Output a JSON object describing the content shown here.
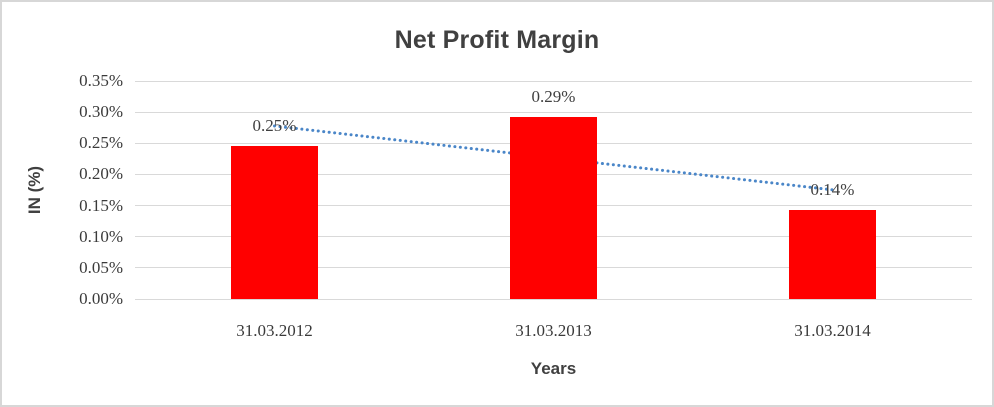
{
  "chart_data": {
    "type": "bar",
    "title": "Net Profit Margin",
    "xlabel": "Years",
    "ylabel": "IN (%)",
    "categories": [
      "31.03.2012",
      "31.03.2013",
      "31.03.2014"
    ],
    "values": [
      0.245,
      0.292,
      0.1425
    ],
    "data_labels": [
      "0.25%",
      "0.29%",
      "0.14%"
    ],
    "unit": "%",
    "ylim": [
      0,
      0.35
    ],
    "ytick_step": 0.05,
    "ytick_labels": [
      "0.00%",
      "0.05%",
      "0.10%",
      "0.15%",
      "0.20%",
      "0.25%",
      "0.30%",
      "0.35%"
    ],
    "grid": true,
    "legend": "none",
    "trendline": {
      "type": "linear",
      "style": "dotted",
      "series": "values"
    },
    "colors": {
      "bar": "#ff0000",
      "trendline": "#4a86c8",
      "gridline": "#d9d9d9",
      "title_text": "#404040",
      "axis_title_text": "#404040",
      "tick_text": "#3a3a3a",
      "data_label_text": "#404040",
      "frame_border": "#d7d7d7",
      "background": "#ffffff"
    }
  }
}
